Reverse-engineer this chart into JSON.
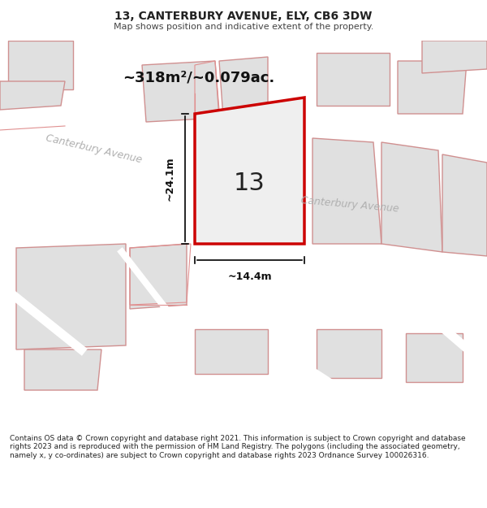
{
  "title": "13, CANTERBURY AVENUE, ELY, CB6 3DW",
  "subtitle": "Map shows position and indicative extent of the property.",
  "footer": "Contains OS data © Crown copyright and database right 2021. This information is subject to Crown copyright and database rights 2023 and is reproduced with the permission of HM Land Registry. The polygons (including the associated geometry, namely x, y co-ordinates) are subject to Crown copyright and database rights 2023 Ordnance Survey 100026316.",
  "area_text": "~318m²/~0.079ac.",
  "width_text": "~14.4m",
  "height_text": "~24.1m",
  "label_text": "13",
  "background_color": "#ffffff",
  "map_bg": "#f5f5f5",
  "road_color": "#e8e8e8",
  "plot_fill": "#e8e8e8",
  "plot_border": "#e8b8b8",
  "highlight_border": "#cc0000",
  "highlight_fill": "#f0f0f0",
  "road_label_color": "#aaaaaa",
  "street_name": "Canterbury Avenue",
  "street_name2": "Canterbury Avenue",
  "title_fontsize": 10,
  "subtitle_fontsize": 8,
  "footer_fontsize": 6.5
}
